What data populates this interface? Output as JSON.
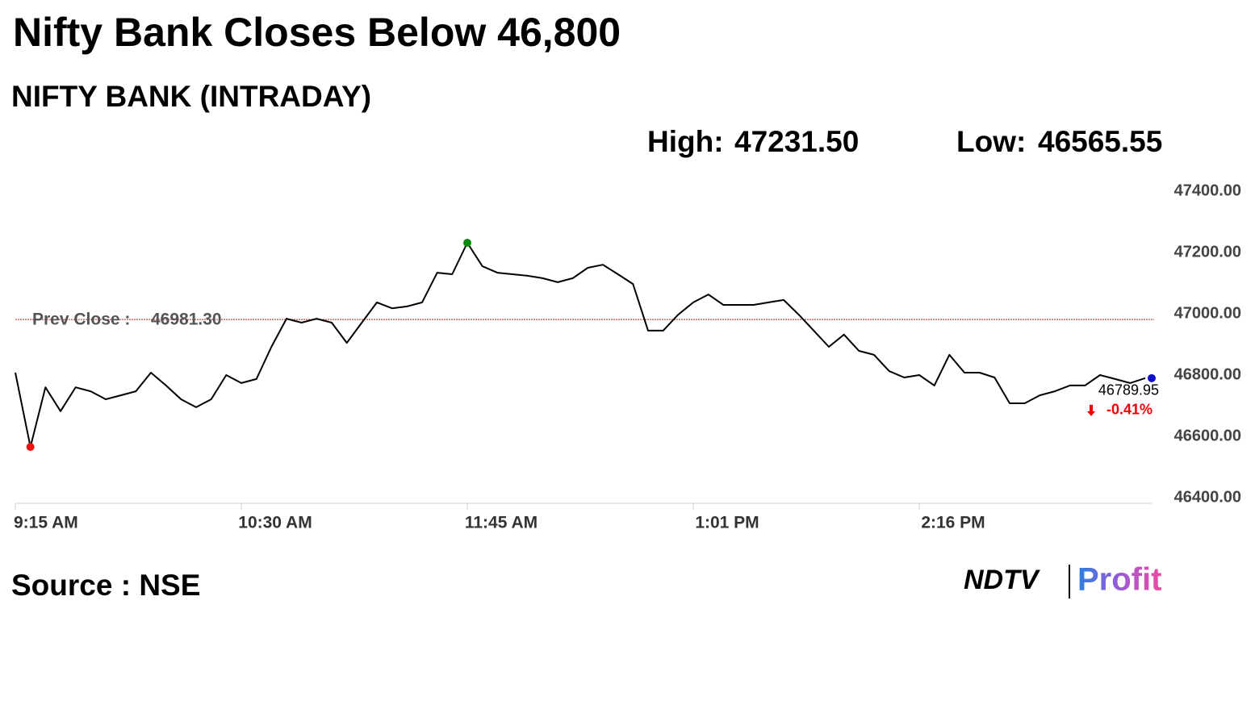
{
  "chart_data": {
    "type": "line",
    "title": "Nifty Bank Closes Below 46,800",
    "subtitle": "NIFTY BANK (INTRADAY)",
    "stats": [
      {
        "label": "High:",
        "value": 47231.5,
        "value_label": "47231.50"
      },
      {
        "label": "Low:",
        "value": 46565.55,
        "value_label": "46565.55"
      }
    ],
    "categories": [
      "9:15 AM",
      null,
      null,
      null,
      null,
      null,
      null,
      null,
      null,
      null,
      null,
      null,
      null,
      null,
      null,
      "10:30 AM",
      null,
      null,
      null,
      null,
      null,
      null,
      null,
      null,
      null,
      null,
      null,
      null,
      null,
      null,
      "11:45 AM",
      null,
      null,
      null,
      null,
      null,
      null,
      null,
      null,
      null,
      null,
      null,
      null,
      null,
      null,
      "1:01 PM",
      null,
      null,
      null,
      null,
      null,
      null,
      null,
      null,
      null,
      null,
      null,
      null,
      null,
      null,
      "2:16 PM",
      null,
      null,
      null,
      null,
      null,
      null,
      null,
      null,
      null,
      null,
      null,
      null,
      null,
      null,
      null
    ],
    "series": [
      {
        "color": "#000000",
        "values": [
          46808,
          46565.55,
          46760,
          46682,
          46760,
          46747,
          46721,
          46734,
          46747,
          46808,
          46766,
          46721,
          46695,
          46721,
          46800,
          46774,
          46787,
          46892,
          46984,
          46971,
          46984,
          46971,
          46905,
          46971,
          47037,
          47018,
          47024,
          47037,
          47134,
          47129,
          47231.5,
          47155,
          47134,
          47129,
          47124,
          47116,
          47103,
          47116,
          47150,
          47160,
          47129,
          47097,
          46945,
          46945,
          46997,
          47037,
          47063,
          47029,
          47029,
          47029,
          47037,
          47045,
          46997,
          46945,
          46892,
          46932,
          46879,
          46866,
          46813,
          46792,
          46800,
          46766,
          46866,
          46808,
          46808,
          46792,
          46708,
          46708,
          46734,
          46747,
          46766,
          46766,
          46800,
          46787,
          46774,
          46789.95
        ]
      }
    ],
    "high_index": 30,
    "low_index": 1,
    "high_color": "#0a8a0a",
    "low_color": "#ee1111",
    "last_color": "#1111cc",
    "last_value_label": "46789.95",
    "change": -0.41,
    "change_label": "-0.41%",
    "reference_line": {
      "label": "Prev Close :",
      "value": 46981.3,
      "value_label": "46981.30",
      "color": "#b22222"
    },
    "ylim": [
      46400,
      47400
    ],
    "yticks": [
      {
        "value": 46400,
        "label": "46400.00"
      },
      {
        "value": 46600,
        "label": "46600.00"
      },
      {
        "value": 46800,
        "label": "46800.00"
      },
      {
        "value": 47000,
        "label": "47000.00"
      },
      {
        "value": 47200,
        "label": "47200.00"
      },
      {
        "value": 47400,
        "label": "47400.00"
      }
    ],
    "source": "Source : NSE",
    "logo": {
      "left": "NDTV",
      "right": "Profit"
    }
  }
}
